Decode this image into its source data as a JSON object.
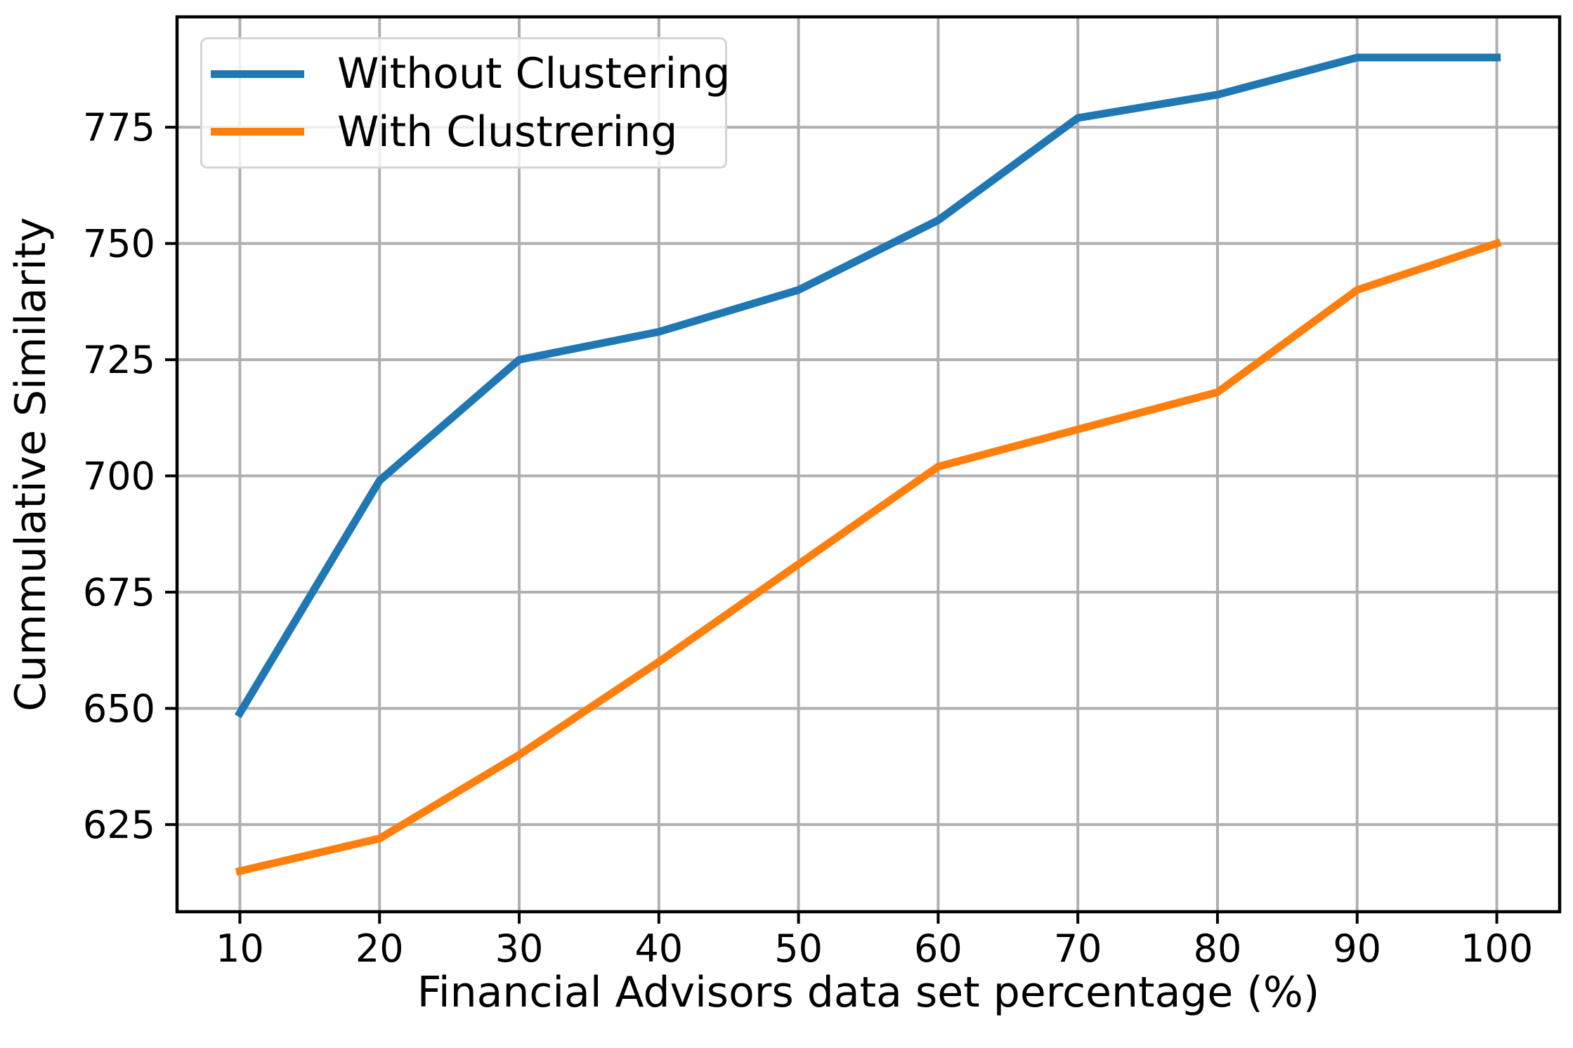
{
  "chart_data": {
    "type": "line",
    "xlabel": "Financial Advisors data set percentage (%)",
    "ylabel": "Cummulative Similarity",
    "x": [
      10,
      20,
      30,
      40,
      50,
      60,
      70,
      80,
      90,
      100
    ],
    "series": [
      {
        "name": "Without Clustering",
        "color": "#1f77b4",
        "values": [
          649,
          699,
          725,
          731,
          740,
          755,
          777,
          782,
          790,
          790
        ]
      },
      {
        "name": "With Clustrering",
        "color": "#ff7f0e",
        "values": [
          615,
          622,
          640,
          660,
          681,
          702,
          710,
          718,
          740,
          750
        ]
      }
    ],
    "xticks": [
      10,
      20,
      30,
      40,
      50,
      60,
      70,
      80,
      90,
      100
    ],
    "yticks": [
      625,
      650,
      675,
      700,
      725,
      750,
      775
    ],
    "xlim": [
      5.5,
      104.5
    ],
    "ylim": [
      606.25,
      798.75
    ],
    "grid": true,
    "grid_color": "#b0b0b0",
    "spine_color": "#000000",
    "legend_position": "upper left"
  }
}
